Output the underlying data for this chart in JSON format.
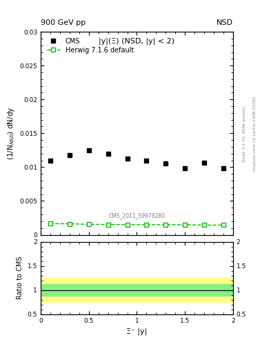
{
  "title_main": "900 GeV pp",
  "title_right": "NSD",
  "plot_title": "|y|(Ξ) (NSD, |y| < 2)",
  "xlabel": "Ξ⁻ |y|",
  "ylabel_main": "(1/N$_{NSD}$) dN/dy",
  "ylabel_ratio": "Ratio to CMS",
  "right_label1": "Rivet 3.1.10, 600k events",
  "right_label2": "mcplots.cern.ch [arXiv:1306.3436]",
  "cms_paper": "CMS_2011_S9978280",
  "cms_x": [
    0.1,
    0.3,
    0.5,
    0.7,
    0.9,
    1.1,
    1.3,
    1.5,
    1.7,
    1.9
  ],
  "cms_y": [
    0.011,
    0.0118,
    0.0125,
    0.012,
    0.0113,
    0.011,
    0.0105,
    0.0098,
    0.0106,
    0.0098
  ],
  "herwig_x": [
    0.1,
    0.3,
    0.5,
    0.7,
    0.9,
    1.1,
    1.3,
    1.5,
    1.7,
    1.9
  ],
  "herwig_y": [
    0.00165,
    0.00162,
    0.00155,
    0.00152,
    0.0015,
    0.0015,
    0.00148,
    0.00148,
    0.00143,
    0.00143
  ],
  "ratio_green_band_lo": 0.88,
  "ratio_green_band_hi": 1.12,
  "ratio_yellow_band_lo": 0.75,
  "ratio_yellow_band_hi": 1.25,
  "ylim_main": [
    0,
    0.03
  ],
  "ylim_ratio": [
    0.5,
    2.0
  ],
  "xlim": [
    0,
    2.0
  ],
  "color_cms": "black",
  "color_herwig": "#00bb00",
  "color_green_band": "#88ee88",
  "color_yellow_band": "#ffff88",
  "legend_cms": "CMS",
  "legend_herwig": "Herwig 7.1.6 default"
}
